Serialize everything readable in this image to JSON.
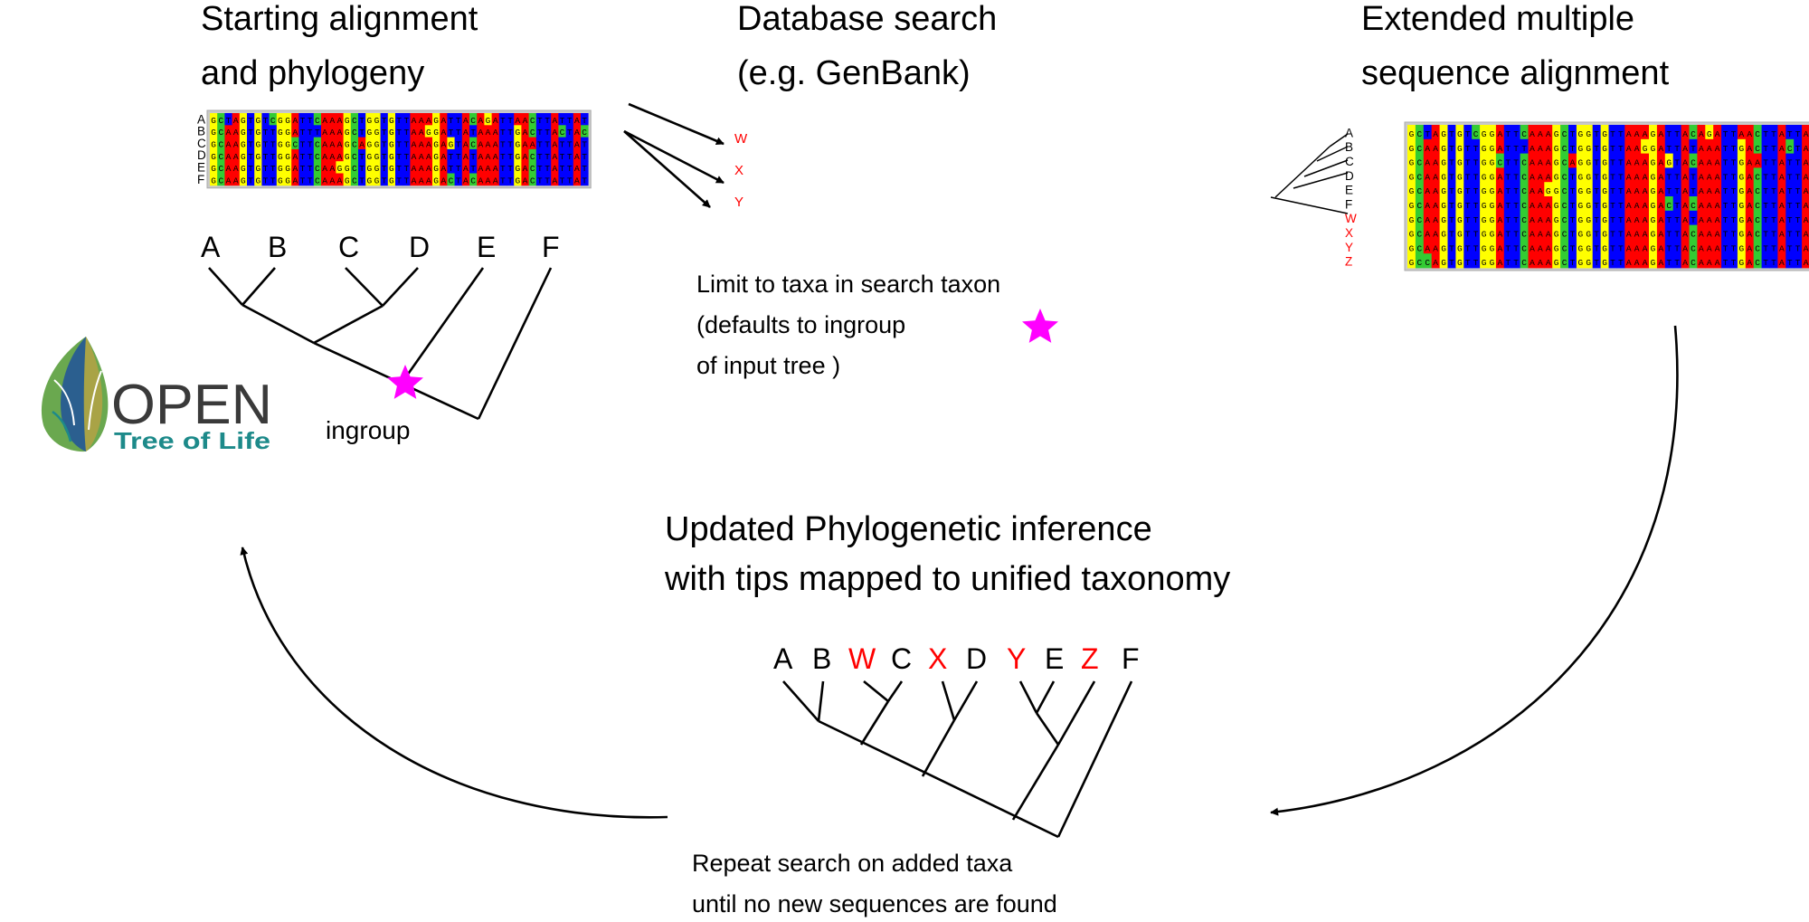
{
  "headings": {
    "start_l1": "Starting alignment",
    "start_l2": "and phylogeny",
    "db_l1": "Database search",
    "db_l2": "(e.g. GenBank)",
    "ext_l1": "Extended multiple",
    "ext_l2": "sequence alignment",
    "upd_l1": "Updated Phylogenetic inference",
    "upd_l2": "with tips mapped to unified taxonomy"
  },
  "starting_alignment": {
    "row_labels": [
      "A",
      "B",
      "C",
      "D",
      "E",
      "F"
    ],
    "sequences": [
      "GCTAGTGTCGGATTCAAAGCTGGTGTTAAAGATTACAGATTAACTTATTAT",
      "GCAAGTGTTGGATTTAAAGCTGGTGTTAAGGATTATAAATTGACTTACTAC",
      "GCAAGTGTTGGCTTCAAAGCAGGTGTTAAAGAGTACAAATTGAATTATTAT",
      "GCAAGTGTTGGATTCAAAGCTGGTGTTAAAGATTATAAATTGACTTATTAT",
      "GCAAGTGTTGGATTCAAGGCTGGTGTTAAAGATTATAAATTGACTTATTAT",
      "GCAAGTGTTGGATTCAAAGCTGGTGTTAAAGACTACAAATTGACTTATTAT"
    ]
  },
  "starting_tree": {
    "tips": [
      "A",
      "B",
      "C",
      "D",
      "E",
      "F"
    ],
    "ingroup_label": "ingroup"
  },
  "database_search": {
    "hits": [
      "W",
      "X",
      "Y"
    ],
    "limit_l1": "Limit to taxa in search taxon",
    "limit_l2": "(defaults to ingroup",
    "limit_l3": "of input tree )"
  },
  "extended_alignment": {
    "row_labels": [
      "A",
      "B",
      "C",
      "D",
      "E",
      "F",
      "W",
      "X",
      "Y",
      "Z"
    ],
    "new_labels": [
      "W",
      "X",
      "Y",
      "Z"
    ],
    "sequences": [
      "GCTAGTGTCGGATTCAAAGCTGGTGTTAAAGATTACAGATTAACTTATTAT",
      "GCAAGTGTTGGATTTAAAGCTGGTGTTAAGGATTATAAATTGACTTACTAC",
      "GCAAGTGTTGGCTTCAAAGCAGGTGTTAAAGAGTACAAATTGAATTATTAT",
      "GCAAGTGTTGGATTCAAAGCTGGTGTTAAAGATTATAAATTGACTTATTAT",
      "GCAAGTGTTGGATTCAAGGCTGGTGTTAAAGATTATAAATTGACTTATTAT",
      "GCAAGTGTTGGATTCAAAGCTGGTGTTAAAGACTACAAATTGACTTATTAT",
      "GCAAGTGTTGGATTCAAAGCTGGTGTTAAAGATTATAAATTGACTTATTAT",
      "GCAAGTGTTGGATTCAAAGCTGGTGTTAAAGATTACAAATTGACTTATTAT",
      "GCAAGTGTTGGATTCAAAGCTGGTGTTAAAGATTACAAATTGACTTATTAT",
      "GCCAGTGTTGGATTCAAAGCTGGTGTTAAAGATTACAAATTGACTTATTAT"
    ]
  },
  "updated_tree": {
    "tips": [
      "A",
      "B",
      "W",
      "C",
      "X",
      "D",
      "Y",
      "E",
      "Z",
      "F"
    ],
    "new_tips": [
      "W",
      "X",
      "Y",
      "Z"
    ]
  },
  "repeat_note": {
    "l1": "Repeat search on added taxa",
    "l2": "until no new sequences are found"
  },
  "logo": {
    "word1": "OPEN",
    "word2": "Tree of Life"
  },
  "colors": {
    "A": "#ff0000",
    "C": "#33cc33",
    "G": "#ffff00",
    "T": "#0000ff",
    "new_taxon": "#ff0000",
    "star": "#ff00ff",
    "frame": "#c9c9c9",
    "logo_text": "#3a3a3a",
    "logo_teal": "#1d8a8a",
    "logo_green": "#6aa84f",
    "logo_blue": "#2b5f8f",
    "logo_olive": "#a9a346"
  }
}
